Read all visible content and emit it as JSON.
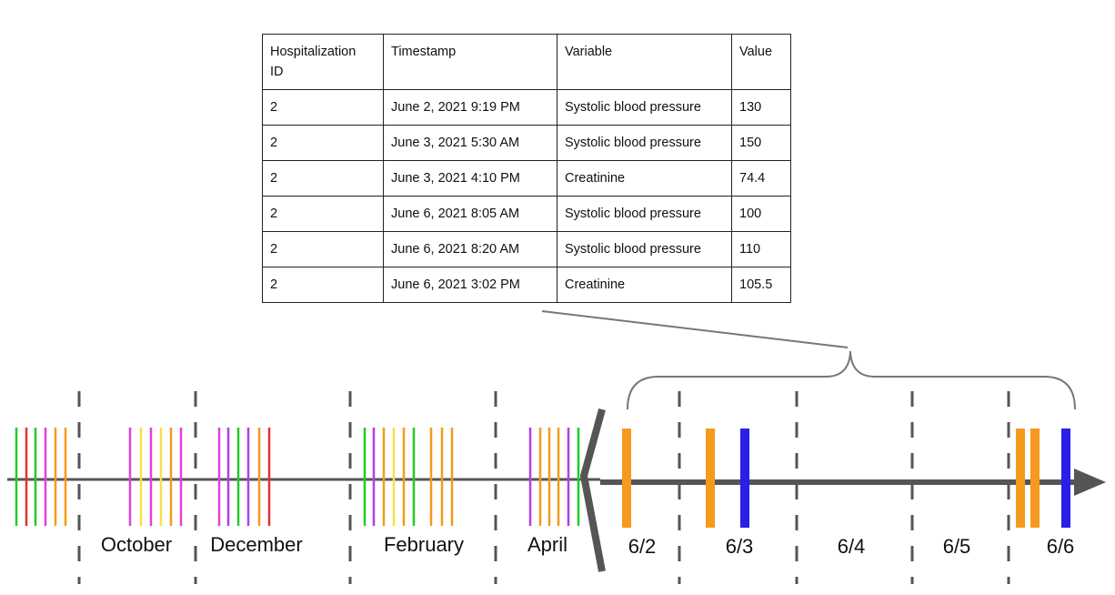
{
  "table": {
    "headers": [
      "Hospitalization ID",
      "Timestamp",
      "Variable",
      "Value"
    ],
    "rows": [
      [
        "2",
        "June 2, 2021 9:19 PM",
        "Systolic blood pressure",
        "130"
      ],
      [
        "2",
        "June 3, 2021 5:30 AM",
        "Systolic blood pressure",
        "150"
      ],
      [
        "2",
        "June 3, 2021 4:10 PM",
        "Creatinine",
        "74.4"
      ],
      [
        "2",
        "June 6, 2021 8:05 AM",
        "Systolic blood pressure",
        "100"
      ],
      [
        "2",
        "June 6, 2021 8:20 AM",
        "Systolic blood pressure",
        "110"
      ],
      [
        "2",
        "June 6, 2021 3:02 PM",
        "Creatinine",
        "105.5"
      ]
    ]
  },
  "timeline": {
    "month_labels": [
      "October",
      "December",
      "February",
      "April"
    ],
    "day_labels": [
      "6/2",
      "6/3",
      "6/4",
      "6/5",
      "6/6"
    ],
    "colors": {
      "axis": "#555555",
      "green": "#22cc22",
      "red": "#e53030",
      "magenta": "#e040e0",
      "yellow": "#f2e24a",
      "orange": "#f59a1c",
      "purple": "#b040e8",
      "blue": "#2a1ee8"
    }
  }
}
